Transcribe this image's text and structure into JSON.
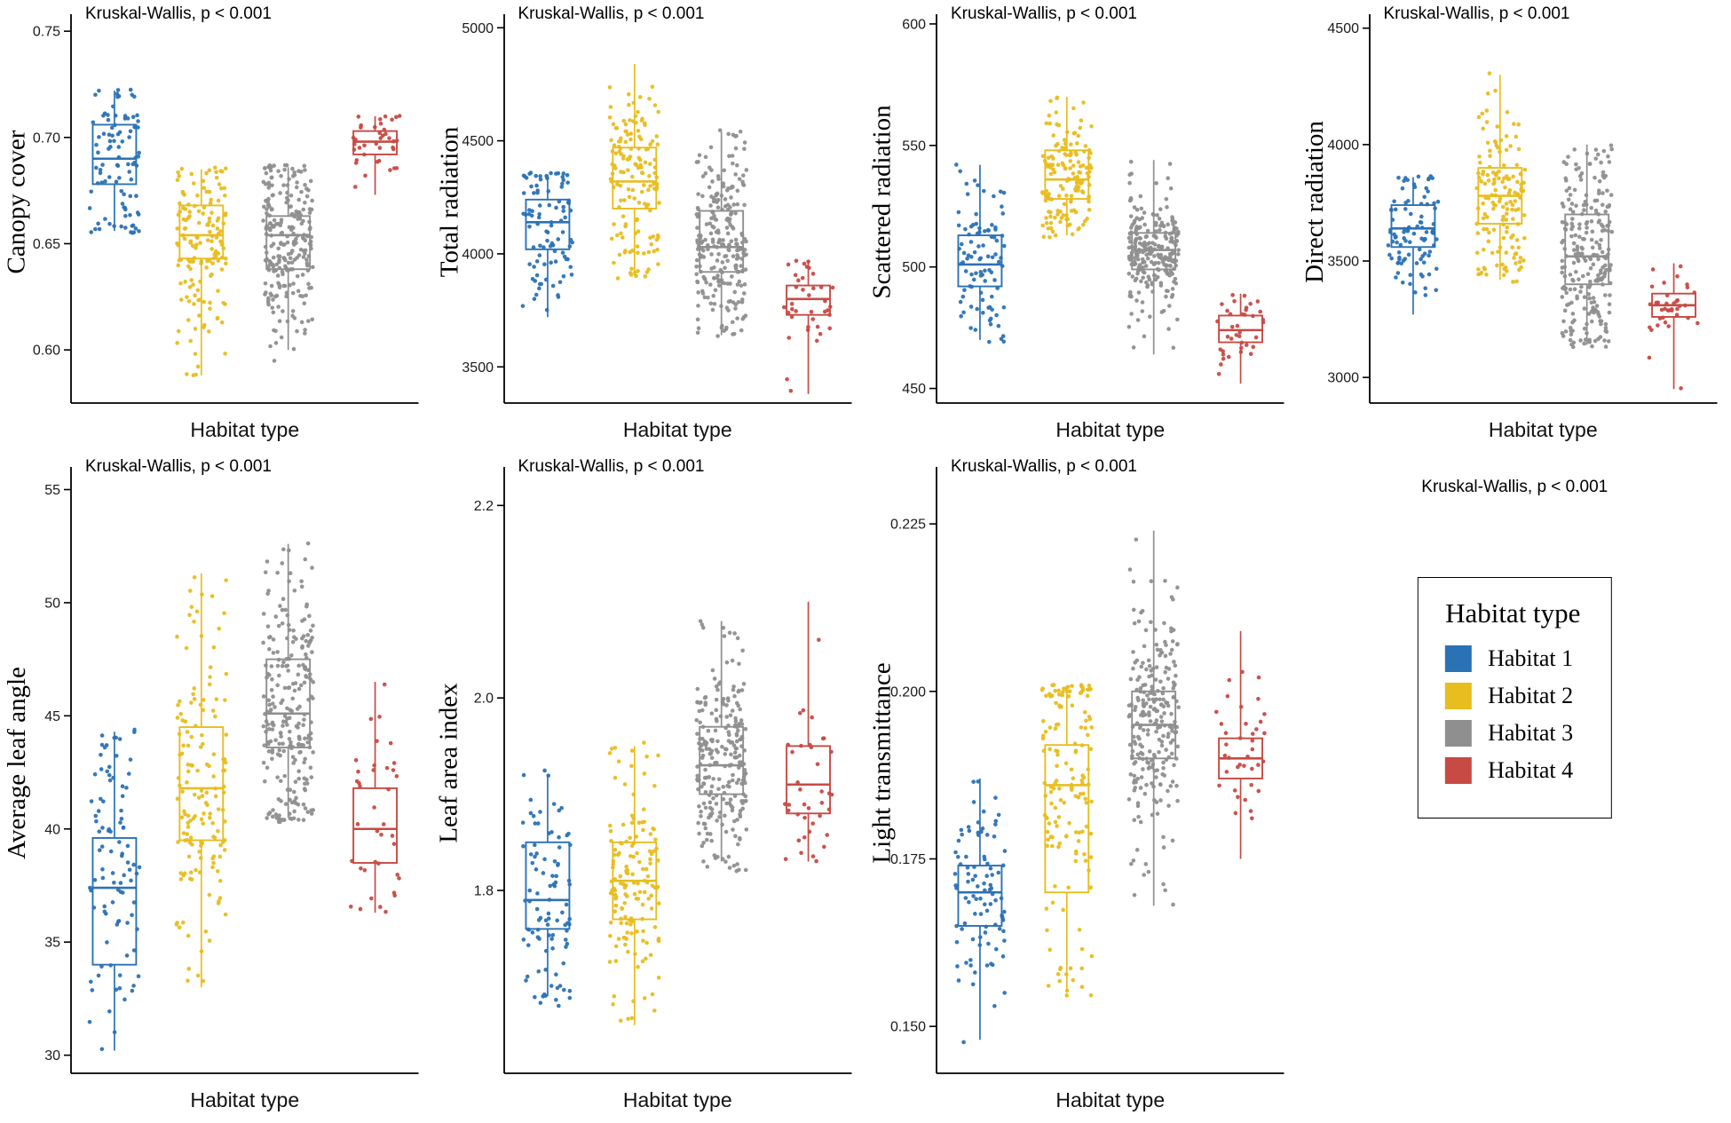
{
  "figure": {
    "kw_label": "Kruskal-Wallis, p < 0.001",
    "xlabel": "Habitat type",
    "background": "#ffffff",
    "axis_color": "#000000"
  },
  "legend": {
    "title": "Habitat type",
    "items": [
      {
        "label": "Habitat 1",
        "color": "#2B72B5"
      },
      {
        "label": "Habitat 2",
        "color": "#E8BD1F"
      },
      {
        "label": "Habitat 3",
        "color": "#8F8F8F"
      },
      {
        "label": "Habitat 4",
        "color": "#C74A44"
      }
    ]
  },
  "chart_data": [
    {
      "type": "boxplot-jitter",
      "ylabel": "Canopy cover",
      "xlabel": "Habitat type",
      "annotation": "Kruskal-Wallis, p < 0.001",
      "ylim": [
        0.575,
        0.758
      ],
      "yticks": [
        0.6,
        0.65,
        0.7,
        0.75
      ],
      "ytick_labels": [
        "0.60",
        "0.65",
        "0.70",
        "0.75"
      ],
      "groups": [
        {
          "habitat": "Habitat 1",
          "color": "#2B72B5",
          "whisker_low": 0.656,
          "q1": 0.678,
          "median": 0.69,
          "q3": 0.706,
          "whisker_high": 0.722,
          "points_min": 0.655,
          "points_max": 0.723,
          "n_points": 95
        },
        {
          "habitat": "Habitat 2",
          "color": "#E8BD1F",
          "whisker_low": 0.588,
          "q1": 0.643,
          "median": 0.654,
          "q3": 0.668,
          "whisker_high": 0.685,
          "points_min": 0.583,
          "points_max": 0.687,
          "n_points": 150
        },
        {
          "habitat": "Habitat 3",
          "color": "#8F8F8F",
          "whisker_low": 0.6,
          "q1": 0.638,
          "median": 0.654,
          "q3": 0.663,
          "whisker_high": 0.686,
          "points_min": 0.592,
          "points_max": 0.687,
          "n_points": 250
        },
        {
          "habitat": "Habitat 4",
          "color": "#C74A44",
          "whisker_low": 0.673,
          "q1": 0.692,
          "median": 0.698,
          "q3": 0.703,
          "whisker_high": 0.71,
          "points_min": 0.672,
          "points_max": 0.711,
          "n_points": 38
        }
      ]
    },
    {
      "type": "boxplot-jitter",
      "ylabel": "Total radiation",
      "xlabel": "Habitat type",
      "annotation": "Kruskal-Wallis, p < 0.001",
      "ylim": [
        3340,
        5060
      ],
      "yticks": [
        3500,
        4000,
        4500,
        5000
      ],
      "ytick_labels": [
        "3500",
        "4000",
        "4500",
        "5000"
      ],
      "groups": [
        {
          "habitat": "Habitat 1",
          "color": "#2B72B5",
          "whisker_low": 3720,
          "q1": 4020,
          "median": 4140,
          "q3": 4240,
          "whisker_high": 4350,
          "points_min": 3710,
          "points_max": 4360,
          "n_points": 95
        },
        {
          "habitat": "Habitat 2",
          "color": "#E8BD1F",
          "whisker_low": 3900,
          "q1": 4200,
          "median": 4320,
          "q3": 4470,
          "whisker_high": 4840,
          "points_min": 3890,
          "points_max": 4860,
          "n_points": 150
        },
        {
          "habitat": "Habitat 3",
          "color": "#8F8F8F",
          "whisker_low": 3640,
          "q1": 3920,
          "median": 4030,
          "q3": 4190,
          "whisker_high": 4540,
          "points_min": 3630,
          "points_max": 4550,
          "n_points": 250
        },
        {
          "habitat": "Habitat 4",
          "color": "#C74A44",
          "whisker_low": 3380,
          "q1": 3730,
          "median": 3800,
          "q3": 3860,
          "whisker_high": 3970,
          "points_min": 3370,
          "points_max": 3980,
          "n_points": 38
        }
      ]
    },
    {
      "type": "boxplot-jitter",
      "ylabel": "Scattered radiation",
      "xlabel": "Habitat type",
      "annotation": "Kruskal-Wallis, p < 0.001",
      "ylim": [
        444,
        604
      ],
      "yticks": [
        450,
        500,
        550,
        600
      ],
      "ytick_labels": [
        "450",
        "500",
        "550",
        "600"
      ],
      "groups": [
        {
          "habitat": "Habitat 1",
          "color": "#2B72B5",
          "whisker_low": 470,
          "q1": 492,
          "median": 501,
          "q3": 513,
          "whisker_high": 542,
          "points_min": 469,
          "points_max": 543,
          "n_points": 95
        },
        {
          "habitat": "Habitat 2",
          "color": "#E8BD1F",
          "whisker_low": 513,
          "q1": 528,
          "median": 536,
          "q3": 548,
          "whisker_high": 570,
          "points_min": 512,
          "points_max": 571,
          "n_points": 150
        },
        {
          "habitat": "Habitat 3",
          "color": "#8F8F8F",
          "whisker_low": 464,
          "q1": 499,
          "median": 507,
          "q3": 514,
          "whisker_high": 544,
          "points_min": 462,
          "points_max": 545,
          "n_points": 250
        },
        {
          "habitat": "Habitat 4",
          "color": "#C74A44",
          "whisker_low": 452,
          "q1": 469,
          "median": 474,
          "q3": 480,
          "whisker_high": 489,
          "points_min": 451,
          "points_max": 490,
          "n_points": 38
        }
      ]
    },
    {
      "type": "boxplot-jitter",
      "ylabel": "Direct radiation",
      "xlabel": "Habitat type",
      "annotation": "Kruskal-Wallis, p < 0.001",
      "ylim": [
        2890,
        4560
      ],
      "yticks": [
        3000,
        3500,
        4000,
        4500
      ],
      "ytick_labels": [
        "3000",
        "3500",
        "4000",
        "4500"
      ],
      "groups": [
        {
          "habitat": "Habitat 1",
          "color": "#2B72B5",
          "whisker_low": 3270,
          "q1": 3560,
          "median": 3640,
          "q3": 3740,
          "whisker_high": 3860,
          "points_min": 3260,
          "points_max": 3870,
          "n_points": 95
        },
        {
          "habitat": "Habitat 2",
          "color": "#E8BD1F",
          "whisker_low": 3420,
          "q1": 3660,
          "median": 3780,
          "q3": 3900,
          "whisker_high": 4300,
          "points_min": 3410,
          "points_max": 4320,
          "n_points": 150
        },
        {
          "habitat": "Habitat 3",
          "color": "#8F8F8F",
          "whisker_low": 3140,
          "q1": 3400,
          "median": 3520,
          "q3": 3700,
          "whisker_high": 4000,
          "points_min": 3130,
          "points_max": 4010,
          "n_points": 250
        },
        {
          "habitat": "Habitat 4",
          "color": "#C74A44",
          "whisker_low": 2950,
          "q1": 3260,
          "median": 3310,
          "q3": 3360,
          "whisker_high": 3490,
          "points_min": 2930,
          "points_max": 3500,
          "n_points": 38
        }
      ]
    },
    {
      "type": "boxplot-jitter",
      "ylabel": "Average leaf angle",
      "xlabel": "Habitat type",
      "annotation": "Kruskal-Wallis, p < 0.001",
      "ylim": [
        29.2,
        56.0
      ],
      "yticks": [
        30,
        35,
        40,
        45,
        50,
        55
      ],
      "ytick_labels": [
        "30",
        "35",
        "40",
        "45",
        "50",
        "55"
      ],
      "groups": [
        {
          "habitat": "Habitat 1",
          "color": "#2B72B5",
          "whisker_low": 30.2,
          "q1": 34.0,
          "median": 37.4,
          "q3": 39.6,
          "whisker_high": 44.3,
          "points_min": 30.0,
          "points_max": 44.4,
          "n_points": 95
        },
        {
          "habitat": "Habitat 2",
          "color": "#E8BD1F",
          "whisker_low": 33.0,
          "q1": 39.5,
          "median": 41.8,
          "q3": 44.5,
          "whisker_high": 51.3,
          "points_min": 32.8,
          "points_max": 53.8,
          "n_points": 150
        },
        {
          "habitat": "Habitat 3",
          "color": "#8F8F8F",
          "whisker_low": 40.5,
          "q1": 43.6,
          "median": 45.1,
          "q3": 47.5,
          "whisker_high": 52.6,
          "points_min": 40.3,
          "points_max": 52.7,
          "n_points": 250
        },
        {
          "habitat": "Habitat 4",
          "color": "#C74A44",
          "whisker_low": 36.3,
          "q1": 38.5,
          "median": 40.0,
          "q3": 41.8,
          "whisker_high": 46.5,
          "points_min": 36.2,
          "points_max": 46.6,
          "n_points": 38
        }
      ]
    },
    {
      "type": "boxplot-jitter",
      "ylabel": "Leaf area index",
      "xlabel": "Habitat type",
      "annotation": "Kruskal-Wallis, p < 0.001",
      "ylim": [
        1.61,
        2.24
      ],
      "yticks": [
        1.8,
        2.0,
        2.2
      ],
      "ytick_labels": [
        "1.8",
        "2.0",
        "2.2"
      ],
      "groups": [
        {
          "habitat": "Habitat 1",
          "color": "#2B72B5",
          "whisker_low": 1.69,
          "q1": 1.76,
          "median": 1.79,
          "q3": 1.85,
          "whisker_high": 1.92,
          "points_min": 1.68,
          "points_max": 1.93,
          "n_points": 95
        },
        {
          "habitat": "Habitat 2",
          "color": "#E8BD1F",
          "whisker_low": 1.66,
          "q1": 1.77,
          "median": 1.81,
          "q3": 1.85,
          "whisker_high": 1.95,
          "points_min": 1.65,
          "points_max": 1.96,
          "n_points": 150
        },
        {
          "habitat": "Habitat 3",
          "color": "#8F8F8F",
          "whisker_low": 1.83,
          "q1": 1.9,
          "median": 1.93,
          "q3": 1.97,
          "whisker_high": 2.08,
          "points_min": 1.82,
          "points_max": 2.09,
          "n_points": 250
        },
        {
          "habitat": "Habitat 4",
          "color": "#C74A44",
          "whisker_low": 1.83,
          "q1": 1.88,
          "median": 1.91,
          "q3": 1.95,
          "whisker_high": 2.1,
          "points_min": 1.83,
          "points_max": 2.11,
          "n_points": 38
        }
      ]
    },
    {
      "type": "boxplot-jitter",
      "ylabel": "Light transmittance",
      "xlabel": "Habitat type",
      "annotation": "Kruskal-Wallis, p < 0.001",
      "ylim": [
        0.143,
        0.2335
      ],
      "yticks": [
        0.15,
        0.175,
        0.2,
        0.225
      ],
      "ytick_labels": [
        "0.150",
        "0.175",
        "0.200",
        "0.225"
      ],
      "groups": [
        {
          "habitat": "Habitat 1",
          "color": "#2B72B5",
          "whisker_low": 0.148,
          "q1": 0.165,
          "median": 0.17,
          "q3": 0.174,
          "whisker_high": 0.187,
          "points_min": 0.147,
          "points_max": 0.188,
          "n_points": 95
        },
        {
          "habitat": "Habitat 2",
          "color": "#E8BD1F",
          "whisker_low": 0.155,
          "q1": 0.17,
          "median": 0.186,
          "q3": 0.192,
          "whisker_high": 0.2,
          "points_min": 0.154,
          "points_max": 0.201,
          "n_points": 150
        },
        {
          "habitat": "Habitat 3",
          "color": "#8F8F8F",
          "whisker_low": 0.168,
          "q1": 0.19,
          "median": 0.195,
          "q3": 0.2,
          "whisker_high": 0.224,
          "points_min": 0.167,
          "points_max": 0.224,
          "n_points": 250
        },
        {
          "habitat": "Habitat 4",
          "color": "#C74A44",
          "whisker_low": 0.175,
          "q1": 0.187,
          "median": 0.19,
          "q3": 0.193,
          "whisker_high": 0.209,
          "points_min": 0.174,
          "points_max": 0.21,
          "n_points": 38
        }
      ]
    }
  ]
}
